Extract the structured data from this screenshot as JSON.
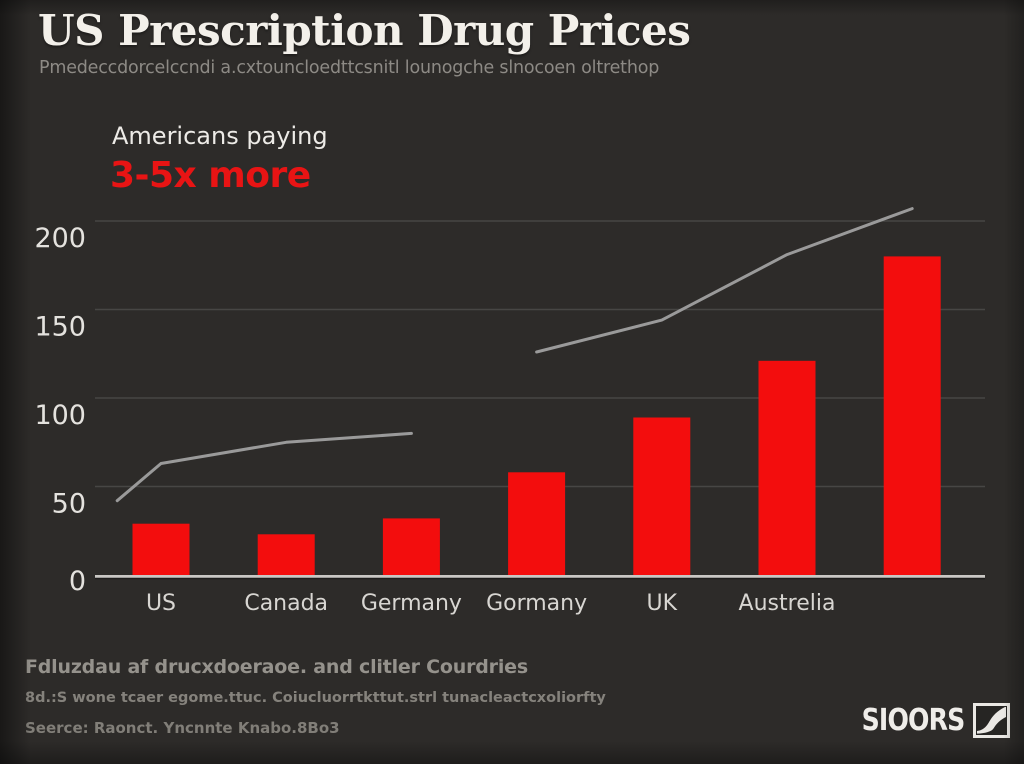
{
  "header": {
    "title": "US Prescription Drug Prices",
    "subtitle": "Pmedeccdorcelccndi a.cxtouncloedttcsnitl lounogche slnocoen oltrethop"
  },
  "annotation": {
    "line1": "Americans paying",
    "line2": "3-5x more",
    "highlight_color": "#e81414"
  },
  "footer": {
    "line1": "Fdluzdau af drucxdoeraoe. and clitler Courdries",
    "line2": "8d.:S wone tcaer egome.ttuc. Coiucluorrtkttut.strl tunacleactcxoliorfty",
    "line3": "Seerce: Raonct. Yncnnte Knabo.8Bo3",
    "logo_text": "SIOORS"
  },
  "chart_data": {
    "type": "bar",
    "title": "US Prescription Drug Prices",
    "annotation": "Americans paying 3-5x more",
    "categories": [
      "US",
      "Canada",
      "Germany",
      "Gormany",
      "UK",
      "Austrelia",
      ""
    ],
    "values": [
      29,
      23,
      32,
      58,
      89,
      121,
      180
    ],
    "line_segments": [
      {
        "points": [
          {
            "cat": -0.35,
            "value": 42
          },
          {
            "cat": 0,
            "value": 63
          },
          {
            "cat": 1,
            "value": 75
          },
          {
            "cat": 2,
            "value": 80
          }
        ]
      },
      {
        "points": [
          {
            "cat": 3,
            "value": 126
          },
          {
            "cat": 4,
            "value": 144
          },
          {
            "cat": 5,
            "value": 181
          },
          {
            "cat": 6,
            "value": 207
          }
        ]
      }
    ],
    "y_ticks": [
      0,
      50,
      100,
      150,
      200
    ],
    "ylim": [
      0,
      215
    ],
    "xlabel": "",
    "ylabel": "",
    "grid": true,
    "legend": "none",
    "bar_color": "#f30d0d",
    "line_color": "#9a9a9a",
    "grid_color": "#474644",
    "axis_color": "#c9c7c4",
    "y_label_color": "#e4e2de",
    "x_label_color": "#d8d6d2"
  }
}
